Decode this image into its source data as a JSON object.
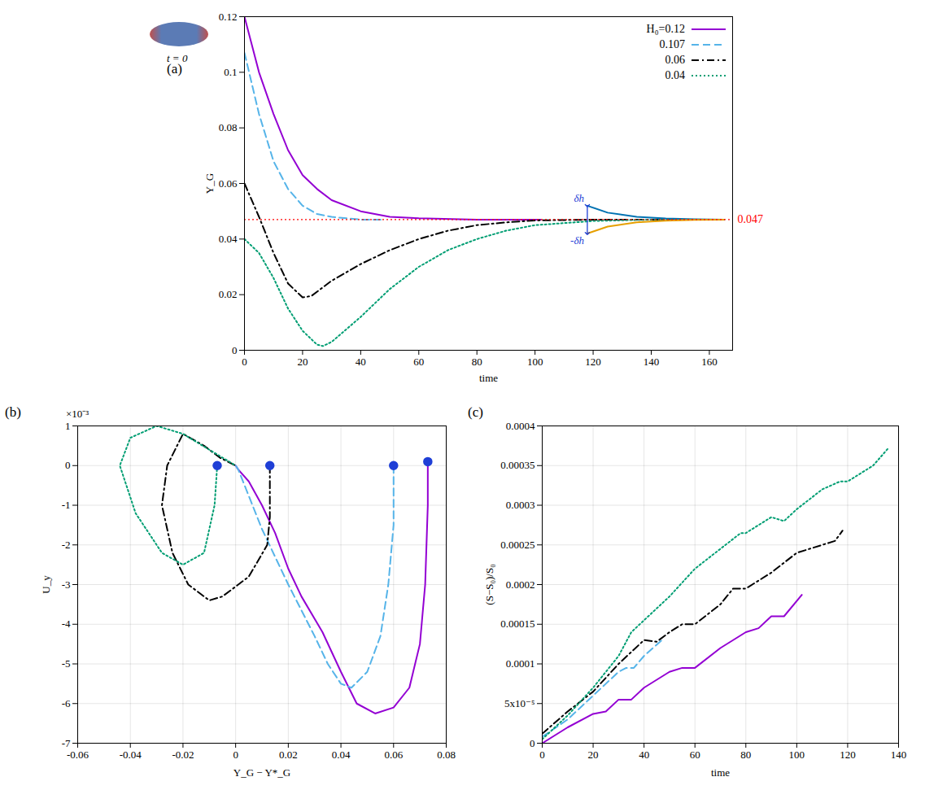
{
  "chart_data": [
    {
      "type": "line",
      "panel": "(a)",
      "xlabel": "time",
      "ylabel": "Y_G",
      "xlim": [
        0,
        168
      ],
      "xticks": [
        0,
        20,
        40,
        60,
        80,
        100,
        120,
        140,
        160
      ],
      "ylim": [
        0,
        0.12
      ],
      "yticks": [
        0,
        0.02,
        0.04,
        0.06,
        0.08,
        0.1,
        0.12
      ],
      "grid": false,
      "legend": "top-right",
      "initial_shape_caption": "t = 0",
      "reference_line": {
        "value": 0.047,
        "color": "#ff0000",
        "line_style": "dotted"
      },
      "annotations": [
        {
          "text": "δh",
          "x": 118,
          "y": 0.0545,
          "color": "#1f3fd6"
        },
        {
          "text": "-δh",
          "x": 118,
          "y": 0.0395,
          "color": "#1f3fd6"
        }
      ],
      "series": [
        {
          "name": "H₀=0.12",
          "color": "#9400d3",
          "line_style": "solid",
          "x": [
            0,
            5,
            10,
            15,
            20,
            25,
            30,
            40,
            50,
            60,
            80,
            102
          ],
          "values": [
            0.12,
            0.1,
            0.085,
            0.072,
            0.063,
            0.058,
            0.054,
            0.05,
            0.048,
            0.0475,
            0.047,
            0.047
          ]
        },
        {
          "name": "0.107",
          "color": "#56b4e9",
          "line_style": "dashed",
          "x": [
            0,
            5,
            10,
            15,
            20,
            25,
            30,
            40,
            47
          ],
          "values": [
            0.107,
            0.085,
            0.068,
            0.058,
            0.052,
            0.049,
            0.048,
            0.047,
            0.047
          ]
        },
        {
          "name": "0.06",
          "color": "#000000",
          "line_style": "dashdot",
          "x": [
            0,
            5,
            10,
            15,
            20,
            23,
            30,
            40,
            50,
            60,
            70,
            80,
            90,
            100,
            120,
            140,
            165
          ],
          "values": [
            0.06,
            0.048,
            0.035,
            0.024,
            0.019,
            0.0195,
            0.025,
            0.031,
            0.036,
            0.04,
            0.043,
            0.045,
            0.046,
            0.0467,
            0.047,
            0.047,
            0.047
          ]
        },
        {
          "name": "0.04",
          "color": "#009e73",
          "line_style": "dotted",
          "x": [
            0,
            5,
            10,
            15,
            20,
            25,
            27,
            30,
            40,
            50,
            60,
            70,
            80,
            90,
            100,
            120,
            140,
            165
          ],
          "values": [
            0.04,
            0.035,
            0.026,
            0.015,
            0.007,
            0.002,
            0.0015,
            0.003,
            0.012,
            0.022,
            0.03,
            0.036,
            0.04,
            0.043,
            0.045,
            0.0465,
            0.047,
            0.047
          ]
        },
        {
          "color": "#0072b2",
          "line_style": "solid",
          "x": [
            118,
            125,
            135,
            145,
            155,
            165
          ],
          "values": [
            0.052,
            0.0495,
            0.048,
            0.0474,
            0.0471,
            0.047
          ]
        },
        {
          "color": "#e69f00",
          "line_style": "solid",
          "x": [
            118,
            125,
            135,
            145,
            155,
            165
          ],
          "values": [
            0.042,
            0.0445,
            0.046,
            0.0466,
            0.0469,
            0.047
          ]
        }
      ]
    },
    {
      "type": "line",
      "panel": "(b)",
      "xlabel": "Y_G − Y*_G",
      "ylabel": "U_y",
      "ylabel_factor": "×10⁻³",
      "xlim": [
        -0.06,
        0.08
      ],
      "xticks": [
        -0.06,
        -0.04,
        -0.02,
        0,
        0.02,
        0.04,
        0.06,
        0.08
      ],
      "ylim": [
        -7,
        1
      ],
      "yticks": [
        -7,
        -6,
        -5,
        -4,
        -3,
        -2,
        -1,
        0,
        1
      ],
      "grid": true,
      "marker": "circle",
      "series": [
        {
          "color": "#9400d3",
          "line_style": "solid",
          "x": [
            0.073,
            0.073,
            0.072,
            0.07,
            0.066,
            0.06,
            0.053,
            0.046,
            0.04,
            0.033,
            0.025,
            0.02,
            0.015,
            0.01,
            0.005,
            0.001,
            0
          ],
          "values": [
            0.1,
            -1,
            -3,
            -4.5,
            -5.6,
            -6.1,
            -6.25,
            -6,
            -5.2,
            -4.2,
            -3.3,
            -2.6,
            -1.7,
            -1,
            -0.4,
            -0.1,
            0
          ]
        },
        {
          "color": "#56b4e9",
          "line_style": "dashed",
          "x": [
            0.06,
            0.06,
            0.058,
            0.055,
            0.05,
            0.044,
            0.04,
            0.035,
            0.03,
            0.02,
            0.01,
            0.004,
            0.001,
            0
          ],
          "values": [
            0,
            -1.5,
            -3,
            -4.3,
            -5.2,
            -5.6,
            -5.5,
            -5,
            -4.3,
            -3,
            -1.6,
            -0.6,
            -0.1,
            0
          ]
        },
        {
          "color": "#000000",
          "line_style": "dashdot",
          "x": [
            0.013,
            0.013,
            0.012,
            0.005,
            -0.005,
            -0.01,
            -0.018,
            -0.024,
            -0.028,
            -0.026,
            -0.02,
            -0.012,
            -0.006,
            0
          ],
          "values": [
            0,
            -1.3,
            -2,
            -2.8,
            -3.3,
            -3.4,
            -3,
            -2.2,
            -1,
            0,
            0.8,
            0.5,
            0.2,
            0
          ]
        },
        {
          "color": "#009e73",
          "line_style": "dotted",
          "x": [
            -0.007,
            -0.008,
            -0.012,
            -0.02,
            -0.028,
            -0.038,
            -0.044,
            -0.04,
            -0.03,
            -0.02,
            -0.01,
            0
          ],
          "values": [
            0,
            -1,
            -2.2,
            -2.5,
            -2.2,
            -1.2,
            0,
            0.7,
            1,
            0.8,
            0.4,
            0
          ]
        }
      ]
    },
    {
      "type": "line",
      "panel": "(c)",
      "xlabel": "time",
      "ylabel": "(S−S₀)/S₀",
      "xlim": [
        0,
        140
      ],
      "xticks": [
        0,
        20,
        40,
        60,
        80,
        100,
        120,
        140
      ],
      "ylim": [
        0,
        0.0004
      ],
      "yticks": [
        0,
        {
          "value": 5e-05,
          "label": "5x10⁻⁵"
        },
        0.0001,
        0.00015,
        0.0002,
        0.00025,
        0.0003,
        0.00035,
        0.0004
      ],
      "grid": true,
      "series": [
        {
          "color": "#9400d3",
          "line_style": "solid",
          "x": [
            0,
            10,
            20,
            25,
            30,
            35,
            40,
            50,
            55,
            60,
            70,
            80,
            85,
            90,
            95,
            102
          ],
          "values": [
            0,
            2e-05,
            3.7e-05,
            4e-05,
            5.5e-05,
            5.5e-05,
            7e-05,
            9e-05,
            9.5e-05,
            9.5e-05,
            0.00012,
            0.00014,
            0.000145,
            0.00016,
            0.00016,
            0.000187
          ]
        },
        {
          "color": "#56b4e9",
          "line_style": "dashed",
          "x": [
            0,
            10,
            20,
            25,
            30,
            33,
            36,
            40,
            47
          ],
          "values": [
            8e-06,
            3e-05,
            6e-05,
            7.5e-05,
            9e-05,
            9.5e-05,
            9.5e-05,
            0.00011,
            0.00013
          ]
        },
        {
          "color": "#000000",
          "line_style": "dashdot",
          "x": [
            0,
            10,
            20,
            30,
            40,
            45,
            50,
            55,
            60,
            70,
            75,
            80,
            90,
            100,
            110,
            115,
            118
          ],
          "values": [
            1.2e-05,
            4e-05,
            6.5e-05,
            0.0001,
            0.00013,
            0.000128,
            0.00014,
            0.00015,
            0.00015,
            0.000175,
            0.000195,
            0.000195,
            0.000215,
            0.00024,
            0.00025,
            0.000255,
            0.000268
          ]
        },
        {
          "color": "#009e73",
          "line_style": "dotted",
          "x": [
            0,
            10,
            20,
            30,
            35,
            40,
            50,
            60,
            70,
            78,
            80,
            90,
            95,
            100,
            110,
            117,
            120,
            130,
            136
          ],
          "values": [
            5e-06,
            3.5e-05,
            7e-05,
            0.00011,
            0.00014,
            0.000155,
            0.000185,
            0.00022,
            0.000245,
            0.000265,
            0.000265,
            0.000285,
            0.00028,
            0.000295,
            0.00032,
            0.00033,
            0.00033,
            0.00035,
            0.000372
          ]
        }
      ]
    }
  ]
}
